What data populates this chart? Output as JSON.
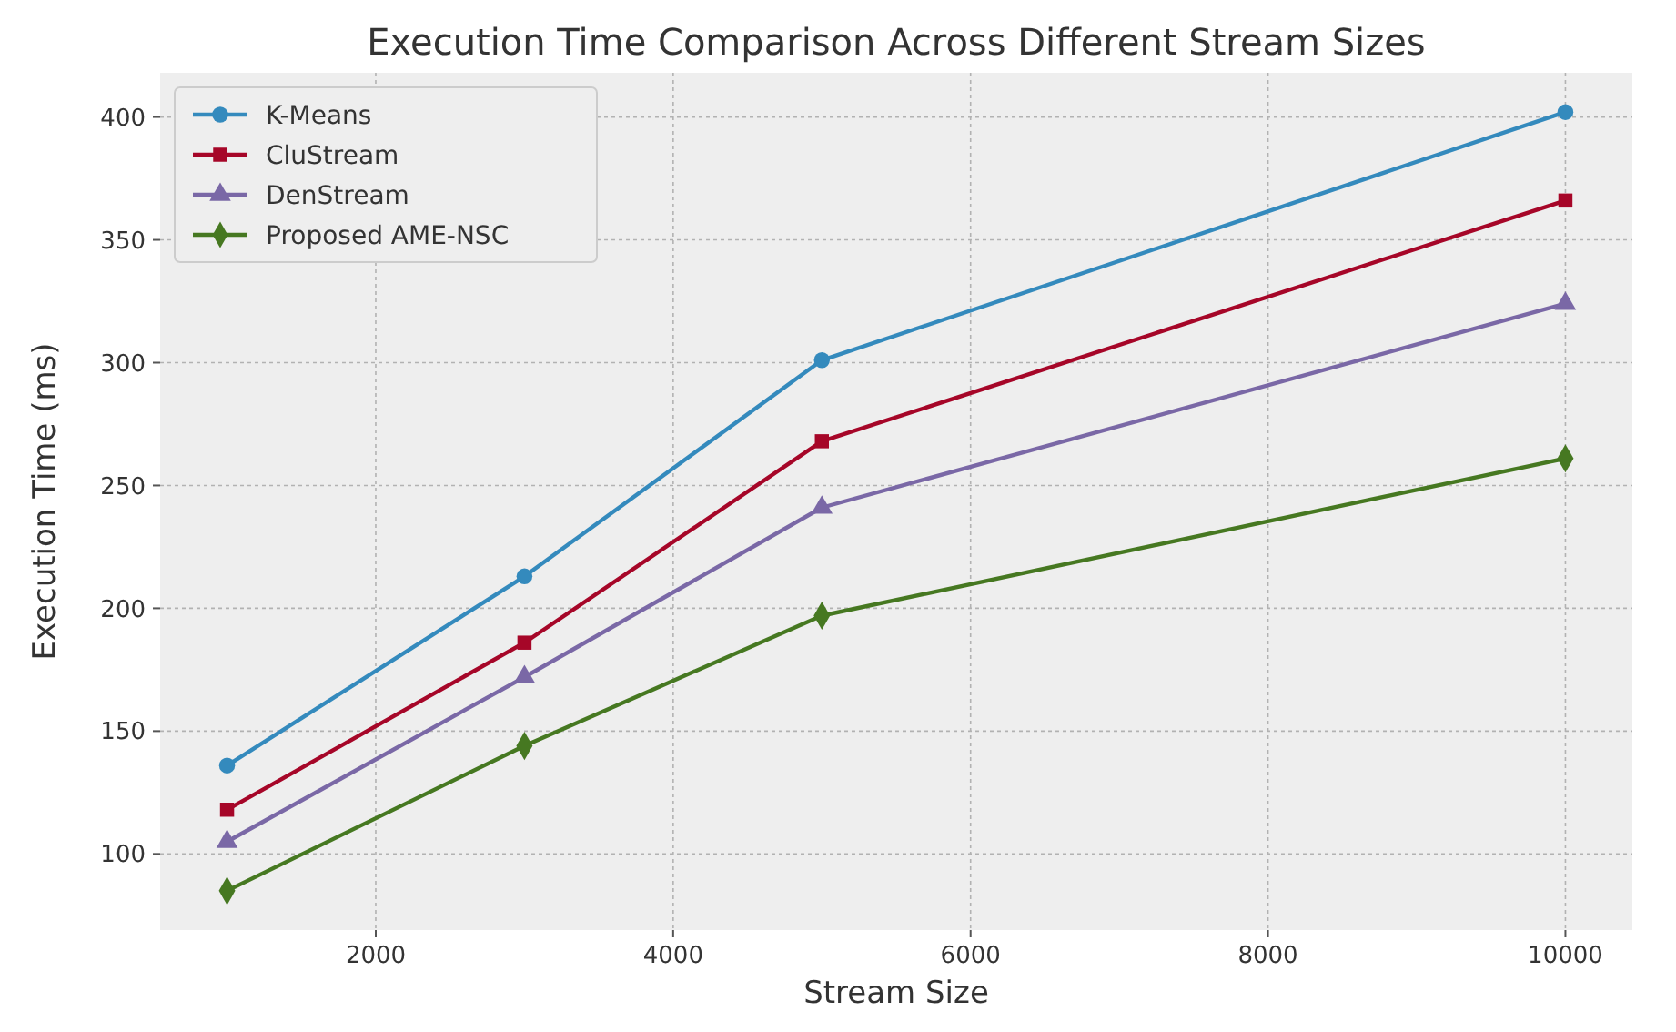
{
  "chart_data": {
    "type": "line",
    "title": "Execution Time Comparison Across Different Stream Sizes",
    "xlabel": "Stream Size",
    "ylabel": "Execution Time (ms)",
    "x": [
      1000,
      3000,
      5000,
      10000
    ],
    "xlim": [
      550,
      10450
    ],
    "xticks": [
      2000,
      4000,
      6000,
      8000,
      10000
    ],
    "ylim": [
      69,
      418
    ],
    "yticks": [
      100,
      150,
      200,
      250,
      300,
      350,
      400
    ],
    "grid": true,
    "legend": "top left",
    "line_style": "solid",
    "series": [
      {
        "name": "K-Means",
        "color": "#348abd",
        "marker": "circle",
        "values": [
          136,
          213,
          301,
          402
        ]
      },
      {
        "name": "CluStream",
        "color": "#a60628",
        "marker": "square",
        "values": [
          118,
          186,
          268,
          366
        ]
      },
      {
        "name": "DenStream",
        "color": "#7a68a6",
        "marker": "triangle",
        "values": [
          105,
          172,
          241,
          324
        ]
      },
      {
        "name": "Proposed AME-NSC",
        "color": "#467821",
        "marker": "diamond",
        "values": [
          85,
          144,
          197,
          261
        ]
      }
    ]
  }
}
